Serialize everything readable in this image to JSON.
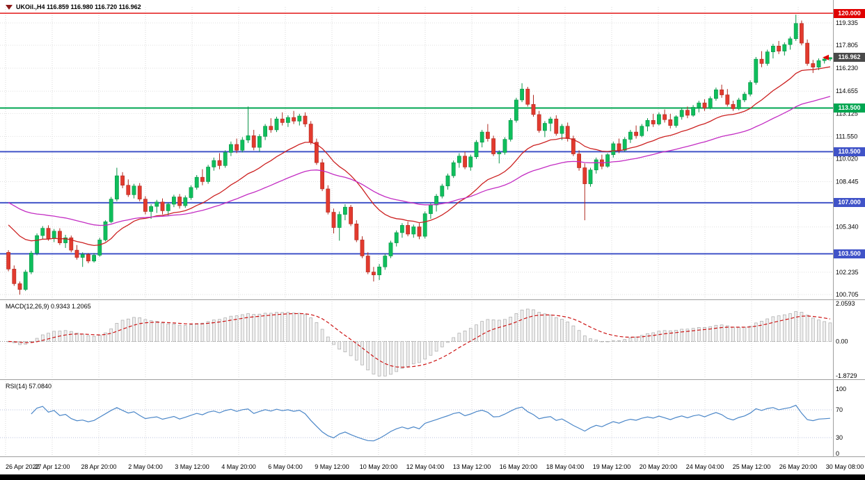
{
  "title": {
    "text": "UKOil.,H4 116.859 116.980 116.720 116.962"
  },
  "indicator_labels": {
    "macd": "MACD(12,26,9) 0.9343 1.2065",
    "rsi": "RSI(14) 57.0840"
  },
  "chart_data": {
    "type": "candlestick",
    "symbol": "UKOil.",
    "timeframe": "H4",
    "current_bar": {
      "open": 116.859,
      "high": 116.98,
      "low": 116.72,
      "close": 116.962
    },
    "y_axis_ticks": [
      "119.335",
      "117.805",
      "116.230",
      "114.655",
      "113.125",
      "111.550",
      "110.020",
      "108.445",
      "105.340",
      "102.235",
      "100.705"
    ],
    "x_axis_labels": [
      "26 Apr 2022",
      "27 Apr 12:00",
      "28 Apr 20:00",
      "2 May 04:00",
      "3 May 12:00",
      "4 May 20:00",
      "6 May 04:00",
      "9 May 12:00",
      "10 May 20:00",
      "12 May 04:00",
      "13 May 12:00",
      "16 May 20:00",
      "18 May 04:00",
      "19 May 12:00",
      "20 May 20:00",
      "24 May 04:00",
      "25 May 12:00",
      "26 May 20:00",
      "30 May 08:00"
    ],
    "horizontal_levels": [
      {
        "price": 120.0,
        "label": "120.000",
        "color": "#e00000",
        "width": 1.4
      },
      {
        "price": 113.5,
        "label": "113.500",
        "color": "#00a651",
        "width": 2
      },
      {
        "price": 110.5,
        "label": "110.500",
        "color": "#4053c8",
        "width": 2
      },
      {
        "price": 107.0,
        "label": "107.000",
        "color": "#4053c8",
        "width": 2
      },
      {
        "price": 103.5,
        "label": "103.500",
        "color": "#4053c8",
        "width": 2
      }
    ],
    "current_price": {
      "value": 116.962,
      "label": "116.962",
      "badge_color": "#4a4a4a",
      "marker_color": "#e00000"
    },
    "moving_averages": [
      {
        "name": "ma-fast",
        "period": 20,
        "color": "#cc2020",
        "seed": 105.8
      },
      {
        "name": "ma-slow",
        "period": 50,
        "color": "#c32cc3",
        "seed": 107.2
      }
    ],
    "candle_colors": {
      "bull": "#0fbe5c",
      "bear": "#e23a2e",
      "bull_stroke": "#0a9448",
      "bear_stroke": "#b02a21"
    },
    "macd": {
      "params": [
        12,
        26,
        9
      ],
      "display_main": 0.9343,
      "display_signal": 1.2065,
      "y_ticks": [
        "2.0593",
        "0.00",
        "-1.8729"
      ],
      "histogram_fill": "#efefef",
      "histogram_stroke": "#a9a9a9",
      "signal_color": "#cc1111"
    },
    "rsi": {
      "period": 14,
      "display_value": 57.084,
      "y_ticks": [
        "100",
        "70",
        "30",
        "0"
      ],
      "levels": [
        70,
        30
      ],
      "line_color": "#4a86c8"
    },
    "candles": [
      [
        103.6,
        103.75,
        102.3,
        102.45
      ],
      [
        102.45,
        102.7,
        101.3,
        101.45
      ],
      [
        101.45,
        101.6,
        100.7,
        101.05
      ],
      [
        101.05,
        102.4,
        100.95,
        102.25
      ],
      [
        102.25,
        103.7,
        102.1,
        103.55
      ],
      [
        103.55,
        104.9,
        103.4,
        104.75
      ],
      [
        104.75,
        105.4,
        104.5,
        105.25
      ],
      [
        105.25,
        105.45,
        104.4,
        104.55
      ],
      [
        104.55,
        105.2,
        104.3,
        105.05
      ],
      [
        105.05,
        105.25,
        104.1,
        104.25
      ],
      [
        104.25,
        104.8,
        103.9,
        104.6
      ],
      [
        104.6,
        104.75,
        103.6,
        103.75
      ],
      [
        103.75,
        104.1,
        103.1,
        103.25
      ],
      [
        103.25,
        103.6,
        102.6,
        103.45
      ],
      [
        103.45,
        103.55,
        102.85,
        103.0
      ],
      [
        103.0,
        103.55,
        102.9,
        103.4
      ],
      [
        103.4,
        104.6,
        103.3,
        104.45
      ],
      [
        104.45,
        105.8,
        104.35,
        105.7
      ],
      [
        105.7,
        107.4,
        105.6,
        107.25
      ],
      [
        107.25,
        109.4,
        107.1,
        108.85
      ],
      [
        108.85,
        109.1,
        108.0,
        108.2
      ],
      [
        108.2,
        108.6,
        107.4,
        107.55
      ],
      [
        107.55,
        108.3,
        107.3,
        108.15
      ],
      [
        108.15,
        108.35,
        107.1,
        107.25
      ],
      [
        107.25,
        107.45,
        106.2,
        106.4
      ],
      [
        106.4,
        106.9,
        105.9,
        106.75
      ],
      [
        106.75,
        107.2,
        106.3,
        107.05
      ],
      [
        107.05,
        107.3,
        106.2,
        106.45
      ],
      [
        106.45,
        107.0,
        106.1,
        106.9
      ],
      [
        106.9,
        107.55,
        106.7,
        107.4
      ],
      [
        107.4,
        107.6,
        106.6,
        106.8
      ],
      [
        106.8,
        107.5,
        106.65,
        107.35
      ],
      [
        107.35,
        108.2,
        107.2,
        108.05
      ],
      [
        108.05,
        108.9,
        107.9,
        108.75
      ],
      [
        108.75,
        109.3,
        108.2,
        108.45
      ],
      [
        108.45,
        109.6,
        108.3,
        109.45
      ],
      [
        109.45,
        110.1,
        109.2,
        109.9
      ],
      [
        109.9,
        110.4,
        109.3,
        109.55
      ],
      [
        109.55,
        110.6,
        109.4,
        110.45
      ],
      [
        110.45,
        111.2,
        110.2,
        111.0
      ],
      [
        111.0,
        111.4,
        110.4,
        110.6
      ],
      [
        110.6,
        111.5,
        110.45,
        111.3
      ],
      [
        111.3,
        113.6,
        111.1,
        111.6
      ],
      [
        111.6,
        112.0,
        110.6,
        110.8
      ],
      [
        110.8,
        111.7,
        110.5,
        111.55
      ],
      [
        111.55,
        112.4,
        111.3,
        112.25
      ],
      [
        112.25,
        112.8,
        111.8,
        112.0
      ],
      [
        112.0,
        112.9,
        111.85,
        112.75
      ],
      [
        112.75,
        113.2,
        112.3,
        112.5
      ],
      [
        112.5,
        113.0,
        112.2,
        112.85
      ],
      [
        112.85,
        113.3,
        112.4,
        112.6
      ],
      [
        112.6,
        113.1,
        112.3,
        112.95
      ],
      [
        112.95,
        113.2,
        112.2,
        112.4
      ],
      [
        112.4,
        112.6,
        111.0,
        111.15
      ],
      [
        111.15,
        111.4,
        109.6,
        109.75
      ],
      [
        109.75,
        110.0,
        107.8,
        107.95
      ],
      [
        107.95,
        108.2,
        106.2,
        106.35
      ],
      [
        106.35,
        106.6,
        104.9,
        105.3
      ],
      [
        105.3,
        106.4,
        104.4,
        106.2
      ],
      [
        106.2,
        106.9,
        105.8,
        106.7
      ],
      [
        106.7,
        106.85,
        105.4,
        105.55
      ],
      [
        105.55,
        105.8,
        104.3,
        104.45
      ],
      [
        104.45,
        104.7,
        103.2,
        103.35
      ],
      [
        103.35,
        103.6,
        102.1,
        102.25
      ],
      [
        102.25,
        102.6,
        101.6,
        102.05
      ],
      [
        102.05,
        102.8,
        101.7,
        102.6
      ],
      [
        102.6,
        103.5,
        102.4,
        103.35
      ],
      [
        103.35,
        104.4,
        103.2,
        104.25
      ],
      [
        104.25,
        105.1,
        104.0,
        104.95
      ],
      [
        104.95,
        105.6,
        104.6,
        105.45
      ],
      [
        105.45,
        105.7,
        104.7,
        104.85
      ],
      [
        104.85,
        105.5,
        104.6,
        105.35
      ],
      [
        105.35,
        105.6,
        104.5,
        104.7
      ],
      [
        104.7,
        106.4,
        104.55,
        106.25
      ],
      [
        106.25,
        107.0,
        105.9,
        106.85
      ],
      [
        106.85,
        107.6,
        106.4,
        107.45
      ],
      [
        107.45,
        108.3,
        107.3,
        108.15
      ],
      [
        108.15,
        109.0,
        107.9,
        108.85
      ],
      [
        108.85,
        109.9,
        108.7,
        109.75
      ],
      [
        109.75,
        110.4,
        109.4,
        110.2
      ],
      [
        110.2,
        110.5,
        109.3,
        109.45
      ],
      [
        109.45,
        110.3,
        109.2,
        110.15
      ],
      [
        110.15,
        111.3,
        110.0,
        111.15
      ],
      [
        111.15,
        112.0,
        110.8,
        111.85
      ],
      [
        111.85,
        112.4,
        111.2,
        111.4
      ],
      [
        111.4,
        111.6,
        110.2,
        110.35
      ],
      [
        110.35,
        110.6,
        109.7,
        110.45
      ],
      [
        110.45,
        111.5,
        110.3,
        111.35
      ],
      [
        111.35,
        112.8,
        111.2,
        112.65
      ],
      [
        112.65,
        114.2,
        112.5,
        114.05
      ],
      [
        114.05,
        115.2,
        113.9,
        114.8
      ],
      [
        114.8,
        114.95,
        113.6,
        113.75
      ],
      [
        113.75,
        114.4,
        112.9,
        113.05
      ],
      [
        113.05,
        113.3,
        111.8,
        111.95
      ],
      [
        111.95,
        112.6,
        111.5,
        112.45
      ],
      [
        112.45,
        112.9,
        111.9,
        112.75
      ],
      [
        112.75,
        113.0,
        111.6,
        111.75
      ],
      [
        111.75,
        112.4,
        111.3,
        112.25
      ],
      [
        112.25,
        112.5,
        111.2,
        111.4
      ],
      [
        111.4,
        111.6,
        110.2,
        110.35
      ],
      [
        110.35,
        110.6,
        109.2,
        109.4
      ],
      [
        109.4,
        109.7,
        105.8,
        108.3
      ],
      [
        108.3,
        109.4,
        108.1,
        109.25
      ],
      [
        109.25,
        110.1,
        109.0,
        109.95
      ],
      [
        109.95,
        110.3,
        109.3,
        109.5
      ],
      [
        109.5,
        110.4,
        109.4,
        110.3
      ],
      [
        110.3,
        111.2,
        110.1,
        111.05
      ],
      [
        111.05,
        111.4,
        110.4,
        110.6
      ],
      [
        110.6,
        111.5,
        110.5,
        111.35
      ],
      [
        111.35,
        112.0,
        111.1,
        111.85
      ],
      [
        111.85,
        112.3,
        111.4,
        111.6
      ],
      [
        111.6,
        112.4,
        111.5,
        112.25
      ],
      [
        112.25,
        112.8,
        111.9,
        112.65
      ],
      [
        112.65,
        113.1,
        112.2,
        112.4
      ],
      [
        112.4,
        113.2,
        112.3,
        113.05
      ],
      [
        113.05,
        113.4,
        112.5,
        112.7
      ],
      [
        112.7,
        113.1,
        112.1,
        112.3
      ],
      [
        112.3,
        113.0,
        112.15,
        112.9
      ],
      [
        112.9,
        113.5,
        112.7,
        113.35
      ],
      [
        113.35,
        113.6,
        112.8,
        113.0
      ],
      [
        113.0,
        113.7,
        112.9,
        113.55
      ],
      [
        113.55,
        114.0,
        113.2,
        113.85
      ],
      [
        113.85,
        114.1,
        113.3,
        113.5
      ],
      [
        113.5,
        114.3,
        113.4,
        114.15
      ],
      [
        114.15,
        114.9,
        114.0,
        114.75
      ],
      [
        114.75,
        115.1,
        114.2,
        114.4
      ],
      [
        114.4,
        114.8,
        113.6,
        113.75
      ],
      [
        113.75,
        114.0,
        113.3,
        113.45
      ],
      [
        113.45,
        114.2,
        113.35,
        114.05
      ],
      [
        114.05,
        114.6,
        113.9,
        114.45
      ],
      [
        114.45,
        115.4,
        114.3,
        115.25
      ],
      [
        115.25,
        117.0,
        115.1,
        116.85
      ],
      [
        116.85,
        117.4,
        116.3,
        116.55
      ],
      [
        116.55,
        117.5,
        116.4,
        117.35
      ],
      [
        117.35,
        117.9,
        116.9,
        117.75
      ],
      [
        117.75,
        118.1,
        117.2,
        117.4
      ],
      [
        117.4,
        118.0,
        117.1,
        117.85
      ],
      [
        117.85,
        118.4,
        117.5,
        118.25
      ],
      [
        118.25,
        119.9,
        118.1,
        119.3
      ],
      [
        119.3,
        119.5,
        117.8,
        117.95
      ],
      [
        117.95,
        118.2,
        116.4,
        116.55
      ],
      [
        116.55,
        116.8,
        115.9,
        116.3
      ],
      [
        116.3,
        116.9,
        116.1,
        116.75
      ],
      [
        116.75,
        117.0,
        116.55,
        116.86
      ],
      [
        116.859,
        116.98,
        116.72,
        116.962
      ]
    ]
  }
}
